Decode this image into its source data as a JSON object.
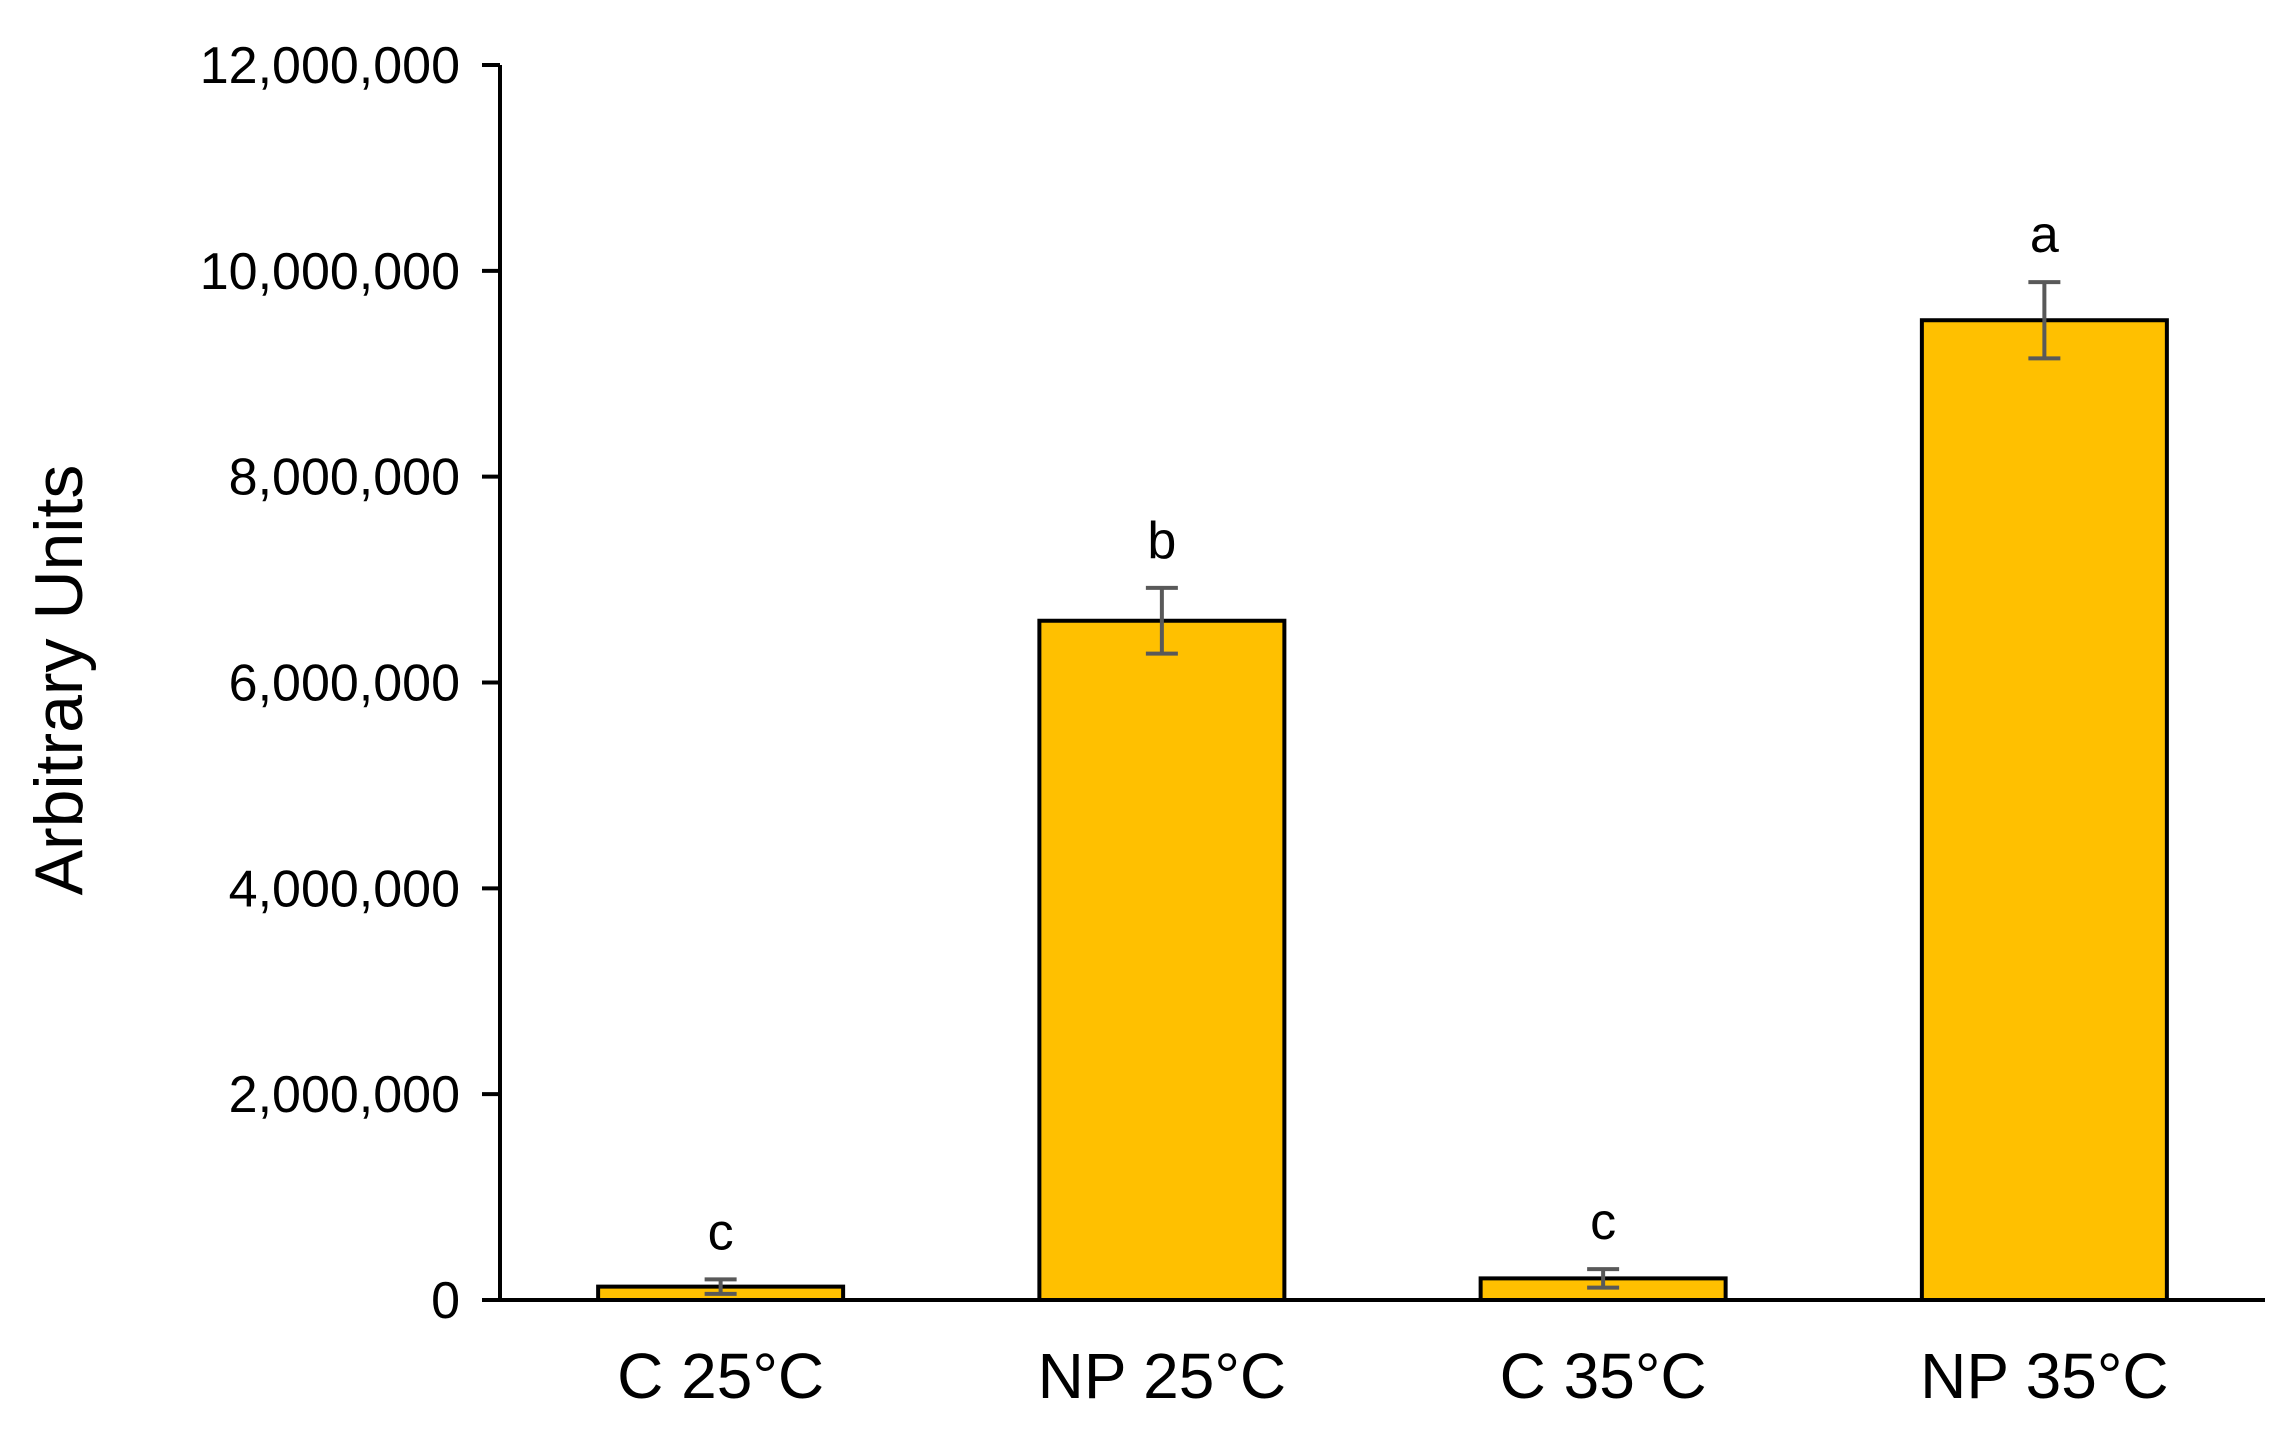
{
  "chart_data": {
    "type": "bar",
    "title": "",
    "xlabel": "",
    "ylabel": "Arbitrary Units",
    "categories": [
      "C 25°C",
      "NP 25°C",
      "C 35°C",
      "NP 35°C"
    ],
    "values": [
      130000,
      6600000,
      210000,
      9520000
    ],
    "errors": [
      70000,
      320000,
      90000,
      370000
    ],
    "significance": [
      "c",
      "b",
      "c",
      "a"
    ],
    "ylim": [
      0,
      12000000
    ],
    "yticks": [
      0,
      2000000,
      4000000,
      6000000,
      8000000,
      10000000,
      12000000
    ],
    "ytick_labels": [
      "0",
      "2,000,000",
      "4,000,000",
      "6,000,000",
      "8,000,000",
      "10,000,000",
      "12,000,000"
    ],
    "grid": false,
    "legend": "none",
    "colors": {
      "bar_fill": "#FFC000",
      "bar_edge": "#000000",
      "error_bar": "#595959",
      "axis": "#000000"
    }
  }
}
